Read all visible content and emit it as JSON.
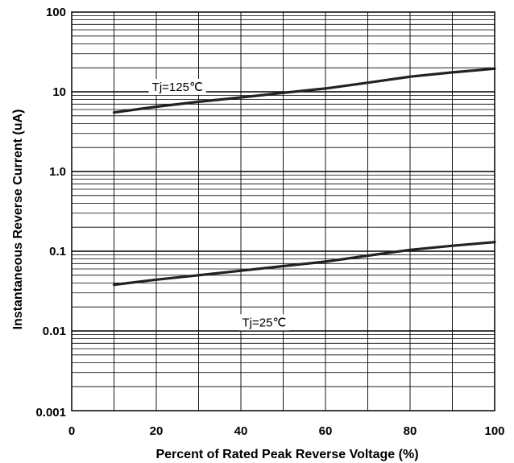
{
  "chart_data": {
    "type": "line",
    "xlabel": "Percent of Rated Peak Reverse Voltage (%)",
    "ylabel": "Instantaneous Reverse Current (uA)",
    "x_scale": "linear",
    "y_scale": "log",
    "xlim": [
      0,
      100
    ],
    "ylim": [
      0.001,
      100
    ],
    "x_ticks": [
      0,
      20,
      40,
      60,
      80,
      100
    ],
    "x_tick_labels": [
      "0",
      "20",
      "40",
      "60",
      "80",
      "100"
    ],
    "y_ticks": [
      0.001,
      0.01,
      0.1,
      1,
      10,
      100
    ],
    "y_tick_labels": [
      "0.001",
      "0.01",
      "0.1",
      "1.0",
      "10",
      "100"
    ],
    "grid": true,
    "series": [
      {
        "name": "Tj=125℃",
        "x": [
          10,
          20,
          30,
          40,
          50,
          60,
          70,
          80,
          90,
          100
        ],
        "y": [
          5.5,
          6.5,
          7.5,
          8.5,
          9.7,
          11.0,
          13.0,
          15.5,
          17.5,
          19.5
        ]
      },
      {
        "name": "Tj=25℃",
        "x": [
          10,
          20,
          30,
          40,
          50,
          60,
          70,
          80,
          90,
          100
        ],
        "y": [
          0.038,
          0.044,
          0.05,
          0.057,
          0.065,
          0.074,
          0.088,
          0.104,
          0.117,
          0.13
        ]
      }
    ],
    "colors": {
      "line": "#222222",
      "grid": "#000000"
    }
  }
}
